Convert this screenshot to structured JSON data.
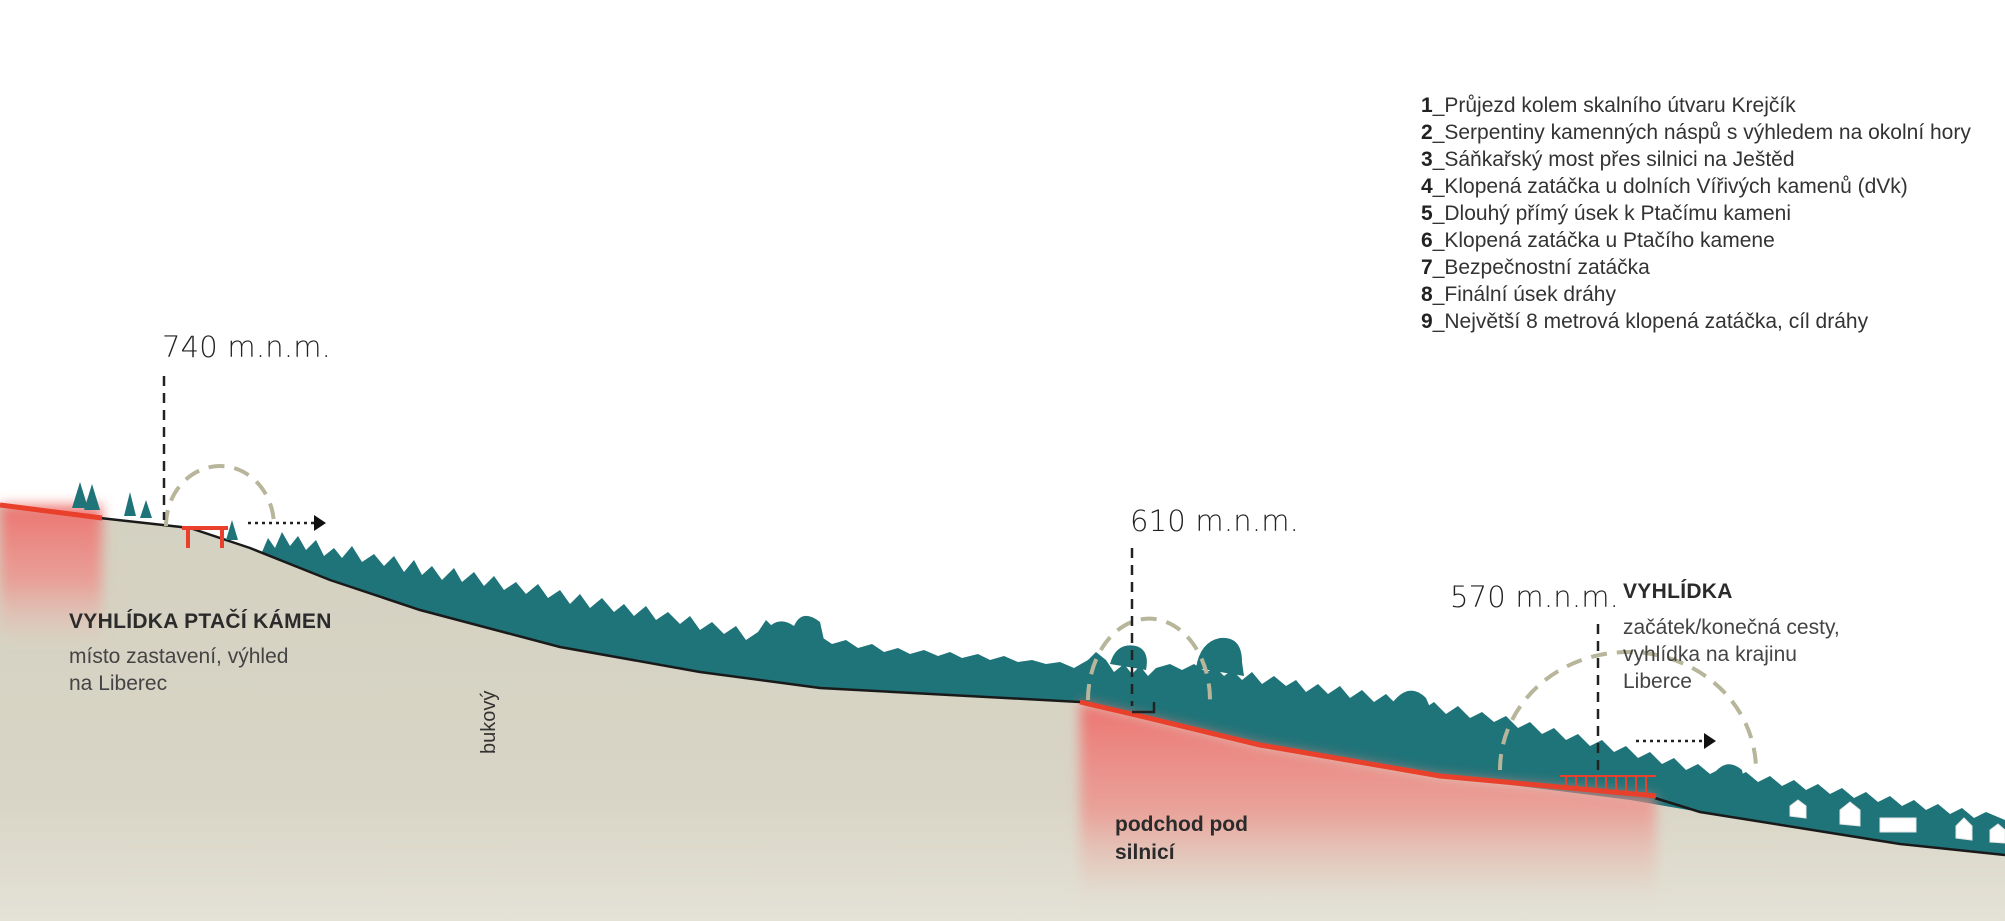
{
  "legend": {
    "items": [
      {
        "num": "1",
        "sep": "_",
        "text": "Průjezd kolem skalního útvaru Krejčík"
      },
      {
        "num": "2",
        "sep": "_",
        "text": "Serpentiny kamenných náspů s výhledem na okolní hory"
      },
      {
        "num": "3",
        "sep": "_",
        "text": "Sáňkařský most přes silnici na Ještěd"
      },
      {
        "num": "4",
        "sep": "_",
        "text": "Klopená zatáčka u dolních Vířivých kamenů (dVk)"
      },
      {
        "num": "5",
        "sep": "_",
        "text": "Dlouhý přímý úsek k Ptačímu kameni"
      },
      {
        "num": "6",
        "sep": "_",
        "text": "Klopená zatáčka u Ptačího kamene"
      },
      {
        "num": "7",
        "sep": "_",
        "text": "Bezpečnostní zatáčka"
      },
      {
        "num": "8",
        "sep": "_",
        "text": "Finální úsek dráhy"
      },
      {
        "num": "9",
        "sep": "_",
        "text": "Největší 8 metrová klopená zatáčka, cíl dráhy"
      }
    ]
  },
  "elevations": {
    "e740": "740 m.n.m.",
    "e610": "610 m.n.m.",
    "e570": "570 m.n.m."
  },
  "places": {
    "ptaci_kamen": {
      "title": "VYHLÍDKA PTAČÍ KÁMEN",
      "sub1": "místo zastavení, výhled",
      "sub2": "na Liberec"
    },
    "vyhlidka": {
      "title": "VYHLÍDKA",
      "sub1": "začátek/konečná cesty,",
      "sub2": "vyhlídka na krajinu",
      "sub3": "Liberce"
    }
  },
  "labels": {
    "bukovy": "bukový",
    "podchod1": "podchod pod",
    "podchod2": "silnicí"
  },
  "colors": {
    "terrain": "#d6d3c3",
    "forest": "#1f7479",
    "track": "#e8402a",
    "track_glow": "#ef7b77",
    "ground_line": "#1a1a1a",
    "view_arc": "#b7b59a"
  }
}
